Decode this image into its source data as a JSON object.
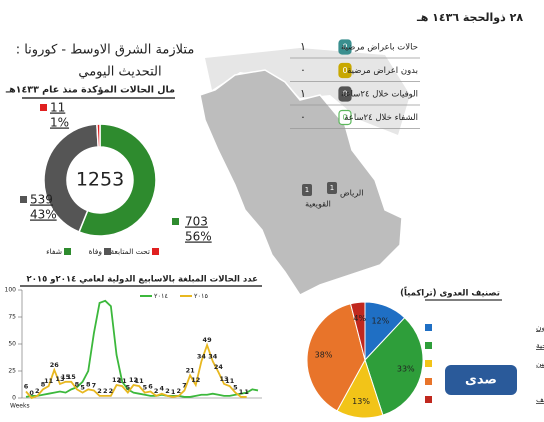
{
  "header": {
    "title": "متلازمة الشرق الاوسط - كورونا :",
    "subtitle": "التحديث اليومي",
    "date": "٢٨ ذوالحجة ١٤٣٦ هـ"
  },
  "table": {
    "rows": [
      {
        "label": "حالات باعراض مرضية",
        "value": "١",
        "icon": "0",
        "color": "#3a8f8f"
      },
      {
        "label": "بدون اعراض مرضية",
        "value": "٠",
        "icon": "0",
        "color": "#c8a800"
      },
      {
        "label": "الوفيات خلال ٢٤ساعة",
        "value": "١",
        "icon": "0",
        "color": "#555555"
      },
      {
        "label": "الشفاء خلال ٢٤ساعة",
        "value": "٠",
        "icon": "0",
        "color": "#5cb85c"
      }
    ]
  },
  "map": {
    "places": [
      {
        "label": "الرياض",
        "pin": "1"
      },
      {
        "label": "القويعية",
        "pin": "1"
      }
    ]
  },
  "logo": "صدى",
  "chart_data": [
    {
      "type": "donut",
      "title": "مال الحالات المؤكدة منذ عام ١٤٣٣هـ",
      "total": 1253,
      "categories": [
        "شفاء",
        "وفاة",
        "تحت المتابعة"
      ],
      "values": [
        703,
        539,
        11
      ],
      "percent_labels": [
        "56%",
        "43%",
        "1%"
      ],
      "colors": [
        "#2e8b2e",
        "#555555",
        "#e02020"
      ]
    },
    {
      "type": "line",
      "title": "عدد الحالات المبلغة بالاسابيع الدولية لعامي ٢٠١٤و ٢٠١٥",
      "xlabel": "Weeks",
      "ylim": [
        0,
        100
      ],
      "yticks": [
        0,
        25,
        50,
        75,
        100
      ],
      "series": [
        {
          "name": "٢٠١٤",
          "color": "#3cb83c",
          "values": [
            1,
            2,
            2,
            3,
            4,
            5,
            6,
            5,
            8,
            10,
            15,
            25,
            60,
            88,
            90,
            85,
            40,
            15,
            8,
            5,
            4,
            3,
            2,
            2,
            3,
            2,
            2,
            2,
            1,
            1,
            2,
            3,
            3,
            4,
            3,
            2,
            2,
            3,
            4,
            5,
            8,
            7
          ]
        },
        {
          "name": "٢٠١٥",
          "color": "#e8b820",
          "values": [
            6,
            0,
            2,
            8,
            11,
            26,
            13,
            15,
            15,
            8,
            5,
            8,
            7,
            2,
            2,
            2,
            12,
            11,
            5,
            12,
            11,
            5,
            6,
            2,
            4,
            2,
            1,
            2,
            7,
            21,
            12,
            34,
            49,
            34,
            24,
            13,
            11,
            5,
            1,
            1,
            null,
            null
          ]
        }
      ]
    },
    {
      "type": "pie",
      "title": "تصنيف العدوى (تراكمياً)",
      "categories": [
        "عاملون صحيون",
        "مكتسب داخل المنشآت الصحية",
        "مخالطين منزليين",
        null,
        "غير مصنف"
      ],
      "values": [
        12,
        33,
        13,
        38,
        4
      ],
      "value_labels": [
        "12%",
        "33%",
        "13%",
        "38%",
        "4%"
      ],
      "colors": [
        "#1f6fc4",
        "#2e9e3a",
        "#f2c418",
        "#e8742a",
        "#c0281e"
      ]
    }
  ]
}
